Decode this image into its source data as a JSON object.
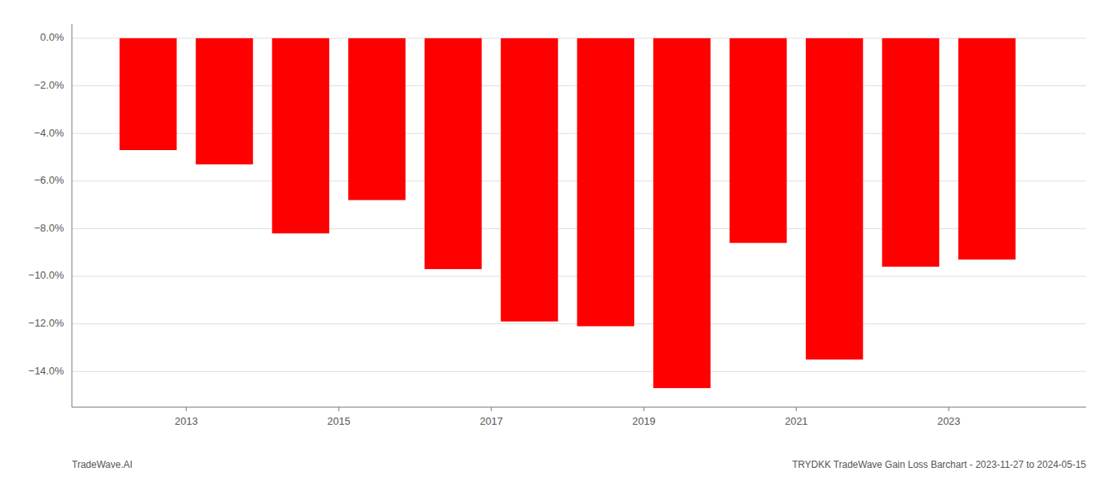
{
  "chart_data": {
    "type": "bar",
    "x": [
      2012.5,
      2013.5,
      2014.5,
      2015.5,
      2016.5,
      2017.5,
      2018.5,
      2019.5,
      2020.5,
      2021.5,
      2022.5,
      2023.5
    ],
    "values": [
      -4.7,
      -5.3,
      -8.2,
      -6.8,
      -9.7,
      -11.9,
      -12.1,
      -14.7,
      -8.6,
      -13.5,
      -9.6,
      -9.3
    ],
    "color": "#ff0000",
    "xlim": [
      2011.5,
      2024.8
    ],
    "xticks": [
      2013,
      2015,
      2017,
      2019,
      2021,
      2023
    ],
    "ylim": [
      -15.5,
      0.6
    ],
    "yticks": [
      {
        "value": 0.0,
        "label": "0.0%"
      },
      {
        "value": -2.0,
        "label": "−2.0%"
      },
      {
        "value": -4.0,
        "label": "−4.0%"
      },
      {
        "value": -6.0,
        "label": "−6.0%"
      },
      {
        "value": -8.0,
        "label": "−8.0%"
      },
      {
        "value": -10.0,
        "label": "−10.0%"
      },
      {
        "value": -12.0,
        "label": "−12.0%"
      },
      {
        "value": -14.0,
        "label": "−14.0%"
      }
    ],
    "grid": true,
    "annotations": [
      "TradeWave.AI",
      "TRYDKK TradeWave Gain Loss Barchart - 2023-11-27 to 2024-05-15"
    ]
  }
}
